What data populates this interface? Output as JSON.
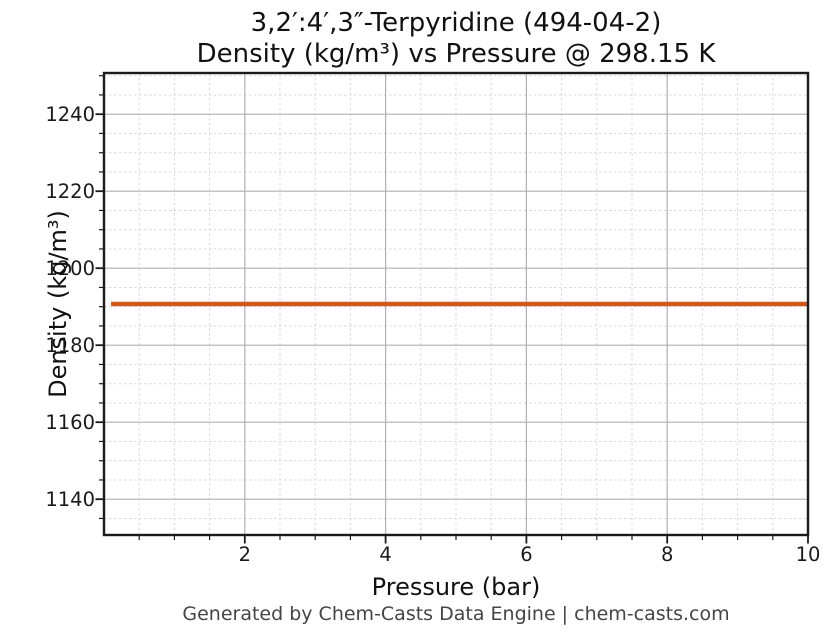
{
  "page": {
    "background": "#ffffff"
  },
  "chart_data": {
    "type": "line",
    "title": "3,2′:4′,3″-Terpyridine (494-04-2)",
    "subtitle": "Density (kg/m³) vs Pressure @ 298.15 K",
    "xlabel": "Pressure (bar)",
    "ylabel": "Density (kg/m³)",
    "series": [
      {
        "name": "density-vs-pressure",
        "color": "#d2571e",
        "linewidth": 4.5,
        "x": [
          0.1,
          10.0
        ],
        "y": [
          1190.7,
          1190.7
        ]
      }
    ],
    "constant_value_kg_m3": 1190.7,
    "xlim": [
      0,
      10
    ],
    "ylim": [
      1130.7,
      1250.7
    ],
    "xticks": [
      2,
      4,
      6,
      8,
      10
    ],
    "yticks": [
      1140,
      1160,
      1180,
      1200,
      1220,
      1240
    ],
    "minor_x_step": 0.5,
    "minor_y_step": 5,
    "grid": {
      "major": true,
      "minor": true,
      "major_color": "#b0b0b0",
      "minor_color": "#d9d9d9"
    },
    "axis_color": "#1a1a1a",
    "tick_label_color": "#1a1a1a",
    "legend": null
  },
  "footer": {
    "text": "Generated by Chem-Casts Data Engine | chem-casts.com"
  }
}
